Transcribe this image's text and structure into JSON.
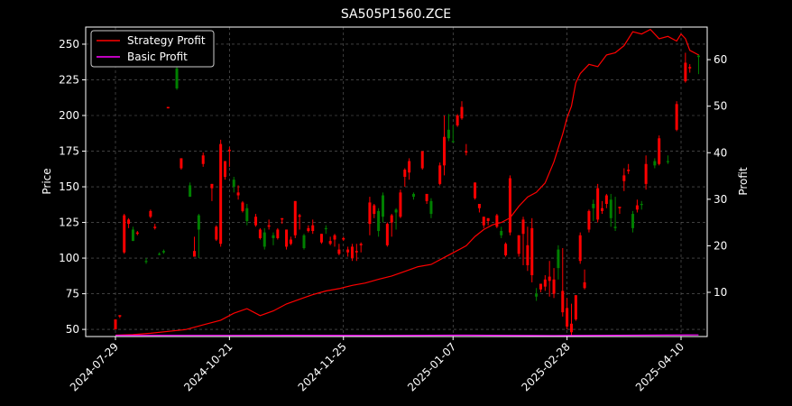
{
  "chart_data": {
    "type": "candlestick",
    "title": "SA505P1560.ZCE",
    "xlabel": "",
    "ylabel": "Price",
    "y2label": "Profit",
    "ylim": [
      45,
      262
    ],
    "y2lim": [
      0.5,
      67
    ],
    "yticks": [
      50,
      75,
      100,
      125,
      150,
      175,
      200,
      225,
      250
    ],
    "y2ticks": [
      10,
      20,
      30,
      40,
      50,
      60
    ],
    "xtick_labels": [
      "2024-07-29",
      "2024-10-21",
      "2024-11-25",
      "2025-01-07",
      "2025-02-28",
      "2025-04-10"
    ],
    "xtick_index": [
      0,
      26,
      52,
      77,
      103,
      129
    ],
    "n": 130,
    "grid": true,
    "legend_position": "upper-left",
    "colors": {
      "background": "#000000",
      "up": "#008000",
      "down": "#ff0000",
      "strategy": "#ff0000",
      "basic": "#ff00ff",
      "text": "#ffffff"
    },
    "candles": [
      [
        0,
        57,
        57,
        50,
        50
      ],
      [
        1,
        60,
        60,
        58,
        59
      ],
      [
        2,
        130,
        131,
        103,
        104
      ],
      [
        3,
        127,
        128,
        121,
        124
      ],
      [
        4,
        112,
        122,
        112,
        120
      ],
      [
        5,
        118,
        119,
        116,
        117
      ],
      [
        7,
        98,
        100,
        96,
        98
      ],
      [
        8,
        133,
        134,
        128,
        129
      ],
      [
        9,
        122,
        124,
        120,
        121
      ],
      [
        10,
        103,
        104,
        102,
        103
      ],
      [
        11,
        104,
        106,
        103,
        105
      ],
      [
        12,
        206,
        206,
        205,
        205
      ],
      [
        14,
        219,
        236,
        218,
        233
      ],
      [
        15,
        170,
        170,
        162,
        163
      ],
      [
        17,
        143,
        153,
        143,
        151
      ],
      [
        18,
        105,
        115,
        101,
        101
      ],
      [
        19,
        120,
        131,
        100,
        130
      ],
      [
        20,
        172,
        174,
        164,
        166
      ],
      [
        22,
        152,
        152,
        140,
        149
      ],
      [
        23,
        122,
        123,
        112,
        113
      ],
      [
        24,
        180,
        183,
        108,
        110
      ],
      [
        25,
        168,
        168,
        155,
        157
      ],
      [
        26,
        176,
        178,
        164,
        175
      ],
      [
        27,
        150,
        157,
        146,
        155
      ],
      [
        28,
        146,
        151,
        141,
        144
      ],
      [
        29,
        139,
        140,
        132,
        133
      ],
      [
        30,
        126,
        138,
        123,
        135
      ],
      [
        32,
        129,
        131,
        122,
        123
      ],
      [
        33,
        120,
        121,
        113,
        114
      ],
      [
        34,
        108,
        121,
        106,
        118
      ],
      [
        35,
        123,
        127,
        120,
        122
      ],
      [
        36,
        114,
        118,
        109,
        116
      ],
      [
        37,
        120,
        121,
        113,
        114
      ],
      [
        38,
        128,
        128,
        124,
        127
      ],
      [
        39,
        120,
        120,
        106,
        108
      ],
      [
        40,
        113,
        115,
        109,
        110
      ],
      [
        41,
        140,
        140,
        114,
        116
      ],
      [
        42,
        130,
        131,
        120,
        129
      ],
      [
        43,
        107,
        117,
        106,
        116
      ],
      [
        44,
        121,
        123,
        118,
        119
      ],
      [
        45,
        123,
        127,
        117,
        119
      ],
      [
        47,
        117,
        117,
        110,
        111
      ],
      [
        48,
        121,
        123,
        117,
        121
      ],
      [
        49,
        112,
        115,
        109,
        110
      ],
      [
        50,
        116,
        117,
        108,
        113
      ],
      [
        51,
        106,
        110,
        102,
        103
      ],
      [
        52,
        114,
        115,
        112,
        113
      ],
      [
        53,
        106,
        108,
        101,
        104
      ],
      [
        54,
        108,
        110,
        98,
        100
      ],
      [
        55,
        105,
        110,
        98,
        104
      ],
      [
        56,
        110,
        111,
        104,
        109
      ],
      [
        58,
        139,
        143,
        116,
        124
      ],
      [
        59,
        137,
        138,
        128,
        131
      ],
      [
        60,
        119,
        135,
        115,
        133
      ],
      [
        61,
        129,
        146,
        125,
        144
      ],
      [
        62,
        124,
        125,
        108,
        109
      ],
      [
        63,
        130,
        131,
        115,
        125
      ],
      [
        64,
        132,
        135,
        120,
        134
      ],
      [
        65,
        146,
        148,
        128,
        129
      ],
      [
        66,
        162,
        163,
        150,
        157
      ],
      [
        67,
        168,
        170,
        155,
        160
      ],
      [
        68,
        143,
        146,
        141,
        145
      ],
      [
        70,
        175,
        175,
        162,
        163
      ],
      [
        71,
        145,
        145,
        138,
        140
      ],
      [
        72,
        131,
        142,
        128,
        140
      ],
      [
        74,
        165,
        167,
        151,
        152
      ],
      [
        75,
        185,
        200,
        158,
        165
      ],
      [
        76,
        184,
        201,
        182,
        190
      ],
      [
        77,
        182,
        193,
        181,
        182
      ],
      [
        78,
        200,
        201,
        192,
        193
      ],
      [
        79,
        206,
        210,
        197,
        198
      ],
      [
        80,
        175,
        180,
        172,
        174
      ],
      [
        82,
        153,
        153,
        141,
        142
      ],
      [
        83,
        138,
        137,
        132,
        135
      ],
      [
        84,
        129,
        129,
        121,
        123
      ],
      [
        85,
        128,
        128,
        123,
        126
      ],
      [
        87,
        130,
        131,
        121,
        122
      ],
      [
        88,
        116,
        122,
        114,
        119
      ],
      [
        89,
        110,
        111,
        101,
        102
      ],
      [
        90,
        156,
        158,
        116,
        118
      ],
      [
        92,
        116,
        116,
        101,
        103
      ],
      [
        93,
        127,
        129,
        95,
        117
      ],
      [
        94,
        109,
        122,
        91,
        95
      ],
      [
        95,
        121,
        128,
        83,
        88
      ],
      [
        96,
        73,
        79,
        70,
        75
      ],
      [
        97,
        82,
        82,
        76,
        78
      ],
      [
        98,
        85,
        88,
        77,
        80
      ],
      [
        99,
        87,
        98,
        73,
        84
      ],
      [
        100,
        85,
        93,
        72,
        75
      ],
      [
        101,
        93,
        109,
        85,
        106
      ],
      [
        102,
        77,
        107,
        59,
        62
      ],
      [
        103,
        65,
        72,
        50,
        52
      ],
      [
        104,
        54,
        68,
        46,
        48
      ],
      [
        105,
        74,
        74,
        56,
        57
      ],
      [
        106,
        116,
        118,
        96,
        98
      ],
      [
        107,
        83,
        92,
        78,
        79
      ],
      [
        108,
        133,
        134,
        118,
        120
      ],
      [
        109,
        135,
        141,
        126,
        138
      ],
      [
        110,
        149,
        152,
        125,
        127
      ],
      [
        111,
        135,
        140,
        131,
        133
      ],
      [
        112,
        144,
        145,
        135,
        138
      ],
      [
        113,
        128,
        145,
        122,
        141
      ],
      [
        114,
        121,
        143,
        119,
        122
      ],
      [
        115,
        136,
        136,
        131,
        135
      ],
      [
        116,
        158,
        163,
        147,
        154
      ],
      [
        117,
        162,
        166,
        159,
        161
      ],
      [
        118,
        121,
        133,
        118,
        131
      ],
      [
        119,
        137,
        141,
        132,
        134
      ],
      [
        120,
        138,
        140,
        134,
        138
      ],
      [
        121,
        166,
        172,
        148,
        152
      ],
      [
        123,
        165,
        170,
        163,
        168
      ],
      [
        124,
        184,
        186,
        165,
        166
      ],
      [
        126,
        168,
        172,
        166,
        168
      ],
      [
        128,
        208,
        210,
        189,
        190
      ],
      [
        130,
        237,
        244,
        223,
        224
      ],
      [
        131,
        234,
        236,
        230,
        233
      ],
      [
        133,
        241,
        243,
        229,
        242
      ]
    ],
    "series": [
      {
        "name": "Strategy Profit",
        "points": [
          [
            0,
            0.8
          ],
          [
            4,
            0.9
          ],
          [
            8,
            1.2
          ],
          [
            12,
            1.6
          ],
          [
            16,
            2.0
          ],
          [
            20,
            3.0
          ],
          [
            24,
            4.0
          ],
          [
            27,
            5.5
          ],
          [
            30,
            6.5
          ],
          [
            33,
            5.0
          ],
          [
            36,
            6.0
          ],
          [
            39,
            7.5
          ],
          [
            42,
            8.5
          ],
          [
            45,
            9.5
          ],
          [
            48,
            10.3
          ],
          [
            51,
            10.8
          ],
          [
            54,
            11.5
          ],
          [
            57,
            12.0
          ],
          [
            60,
            12.8
          ],
          [
            63,
            13.5
          ],
          [
            66,
            14.5
          ],
          [
            69,
            15.5
          ],
          [
            72,
            16.0
          ],
          [
            75,
            17.5
          ],
          [
            77,
            18.5
          ],
          [
            80,
            20.0
          ],
          [
            82,
            22.0
          ],
          [
            84,
            23.5
          ],
          [
            86,
            24.5
          ],
          [
            88,
            25.0
          ],
          [
            90,
            26.0
          ],
          [
            92,
            28.5
          ],
          [
            94,
            30.5
          ],
          [
            96,
            31.5
          ],
          [
            98,
            33.5
          ],
          [
            100,
            38.0
          ],
          [
            102,
            44.0
          ],
          [
            103,
            47.5
          ],
          [
            104,
            50.0
          ],
          [
            105,
            55.0
          ],
          [
            106,
            57.0
          ],
          [
            108,
            59.0
          ],
          [
            110,
            58.5
          ],
          [
            112,
            61.0
          ],
          [
            114,
            61.5
          ],
          [
            116,
            63.0
          ],
          [
            118,
            66.0
          ],
          [
            120,
            65.5
          ],
          [
            122,
            66.5
          ],
          [
            124,
            64.5
          ],
          [
            126,
            65.0
          ],
          [
            128,
            64.0
          ],
          [
            129,
            65.5
          ],
          [
            130,
            64.5
          ],
          [
            131,
            62.0
          ],
          [
            133,
            61.0
          ]
        ]
      },
      {
        "name": "Basic Profit",
        "points": [
          [
            0,
            0.75
          ],
          [
            20,
            0.75
          ],
          [
            40,
            0.78
          ],
          [
            60,
            0.72
          ],
          [
            80,
            0.8
          ],
          [
            100,
            0.7
          ],
          [
            120,
            0.8
          ],
          [
            133,
            0.85
          ]
        ]
      }
    ]
  }
}
